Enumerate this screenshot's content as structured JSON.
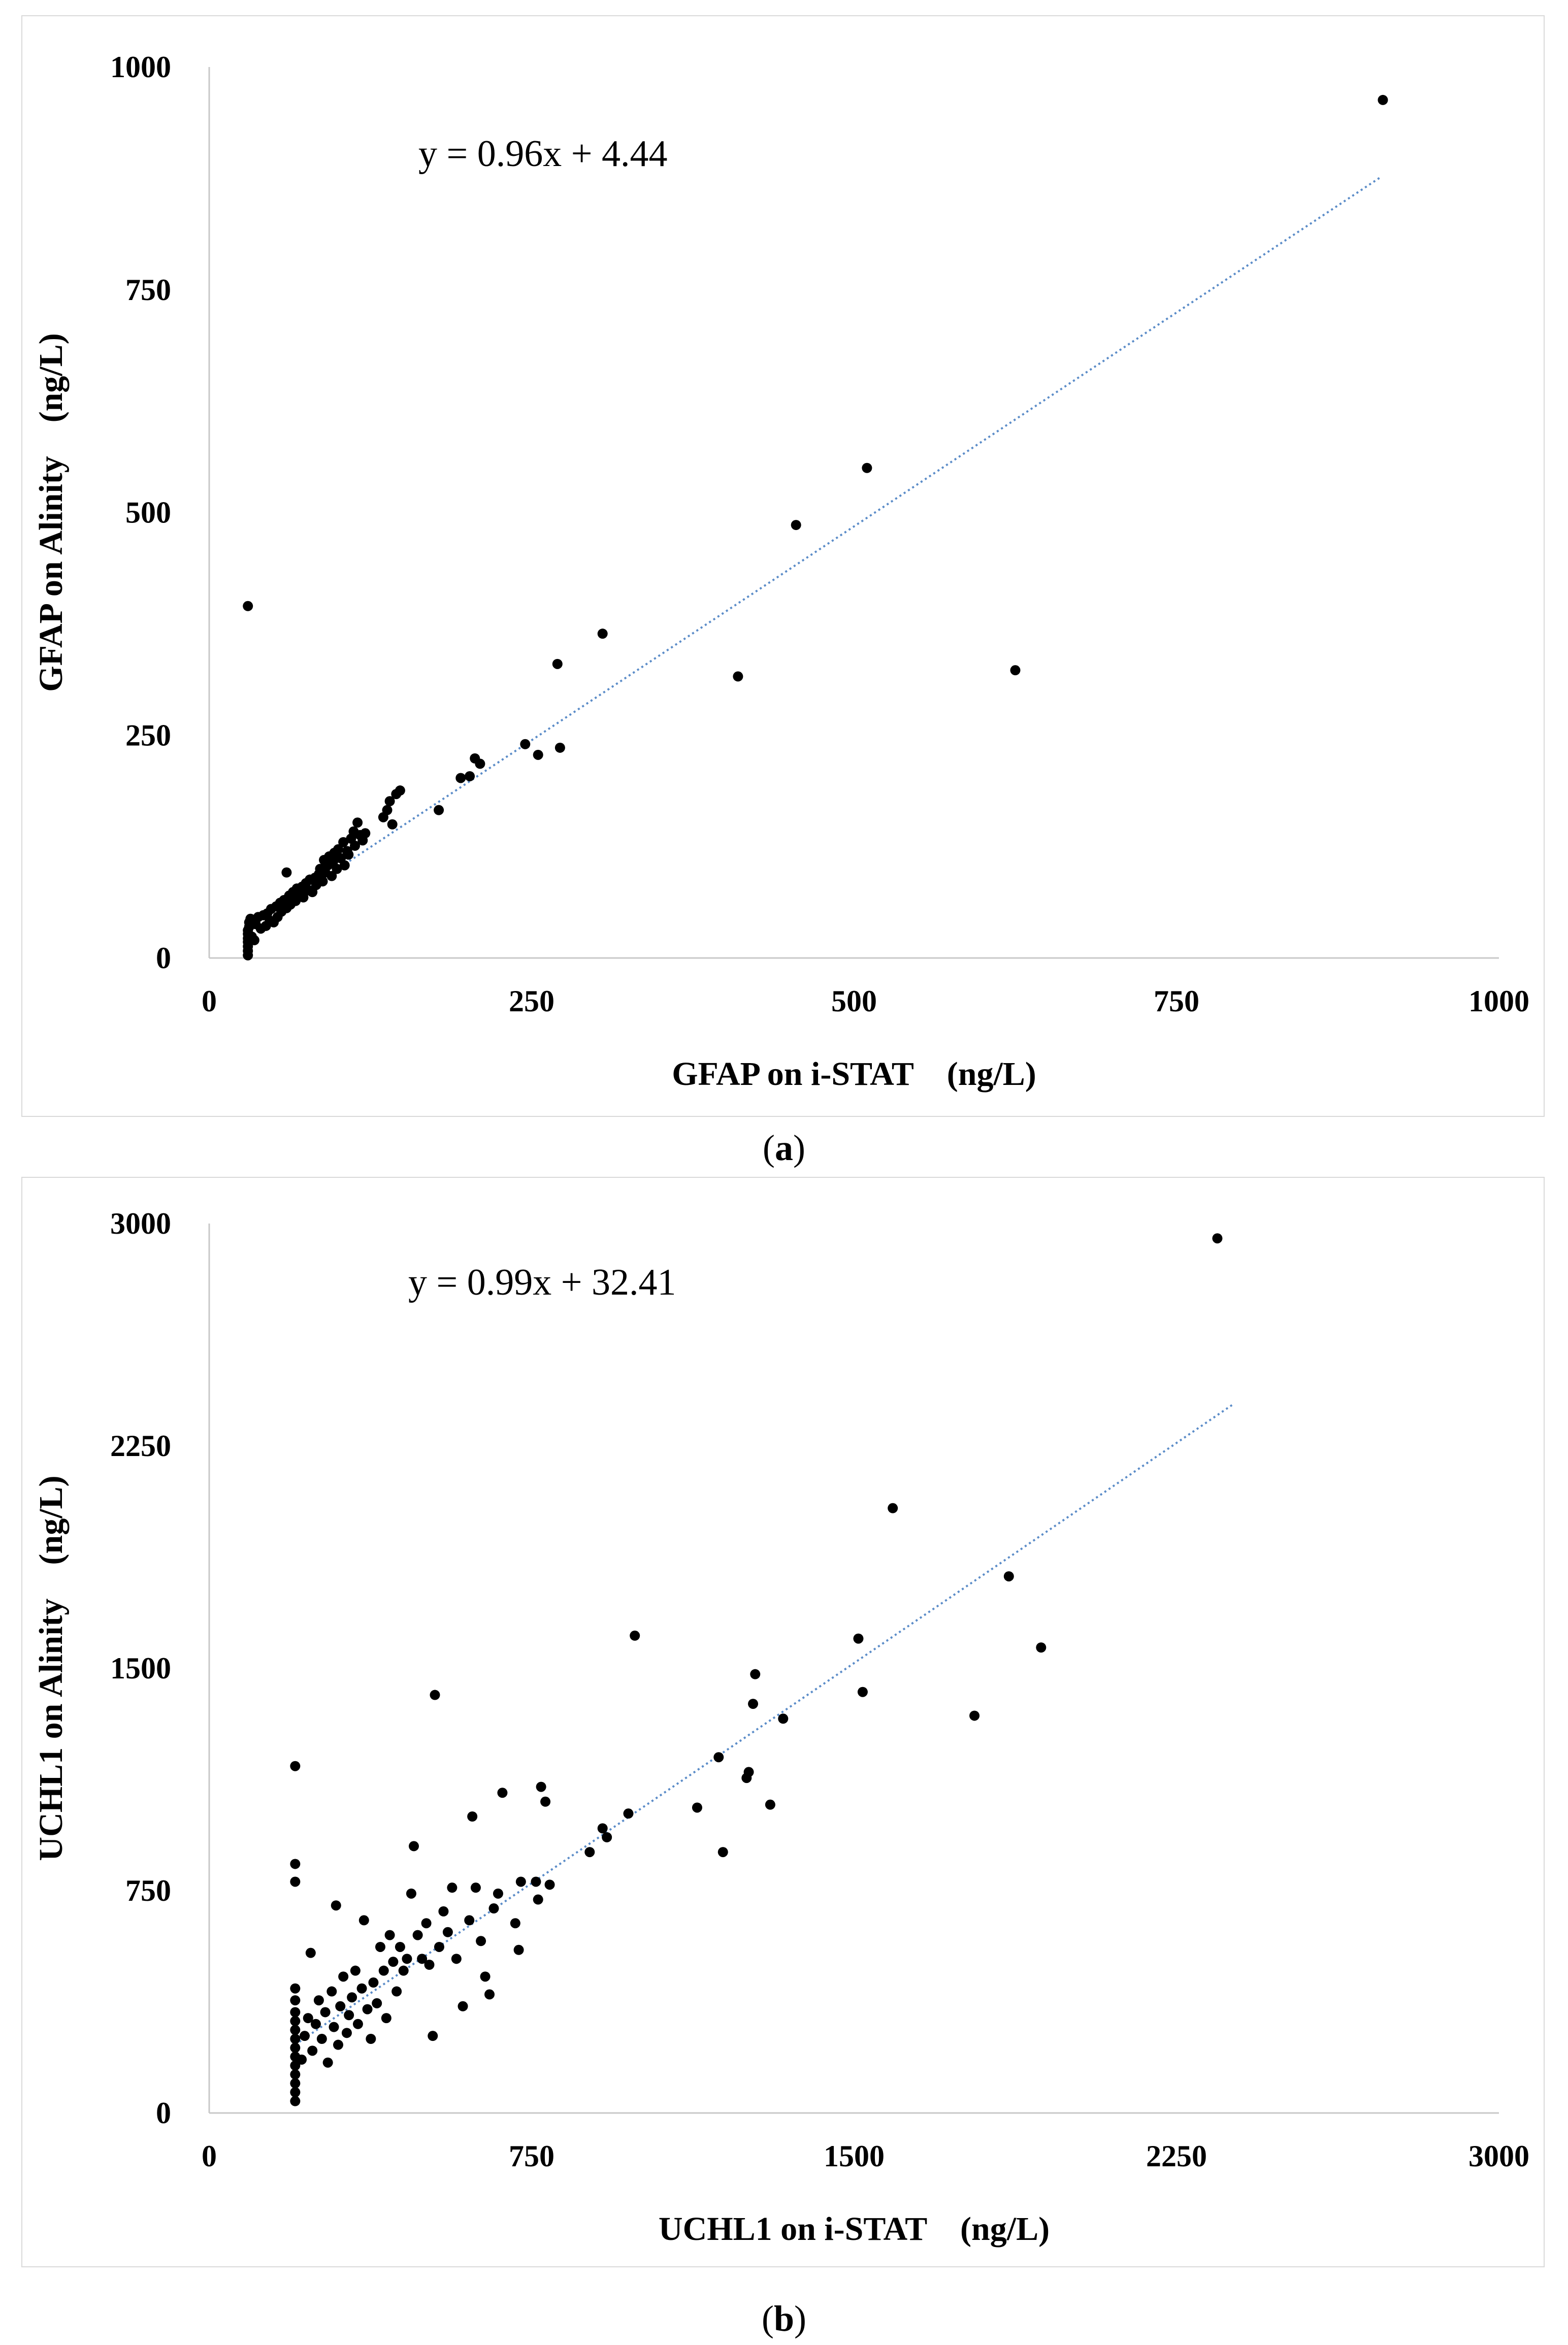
{
  "charts": [
    {
      "panel_label": "a",
      "chart_data": {
        "type": "scatter",
        "title": "",
        "xlabel": "GFAP on i-STAT    (ng/L)",
        "ylabel": "GFAP on Alinity    (ng/L)",
        "xlim": [
          0,
          1000
        ],
        "ylim": [
          0,
          1000
        ],
        "xticks": [
          "0",
          "250",
          "500",
          "750",
          "1000"
        ],
        "yticks": [
          "0",
          "250",
          "500",
          "750",
          "1000"
        ],
        "grid": false,
        "trendline": {
          "slope": 0.96,
          "intercept": 4.44,
          "x_range": [
            30,
            908
          ],
          "label": "y = 0.96x + 4.44"
        },
        "points": [
          [
            30,
            3
          ],
          [
            30,
            8
          ],
          [
            30,
            13
          ],
          [
            30,
            18
          ],
          [
            30,
            22
          ],
          [
            30,
            27
          ],
          [
            30,
            31
          ],
          [
            31,
            35
          ],
          [
            31,
            40
          ],
          [
            32,
            44
          ],
          [
            33,
            24
          ],
          [
            35,
            20
          ],
          [
            36,
            38
          ],
          [
            38,
            46
          ],
          [
            40,
            33
          ],
          [
            42,
            48
          ],
          [
            44,
            36
          ],
          [
            45,
            50
          ],
          [
            47,
            42
          ],
          [
            48,
            55
          ],
          [
            50,
            40
          ],
          [
            52,
            58
          ],
          [
            53,
            46
          ],
          [
            55,
            62
          ],
          [
            56,
            52
          ],
          [
            58,
            65
          ],
          [
            60,
            56
          ],
          [
            60,
            96
          ],
          [
            62,
            70
          ],
          [
            63,
            60
          ],
          [
            65,
            74
          ],
          [
            67,
            64
          ],
          [
            68,
            78
          ],
          [
            70,
            72
          ],
          [
            72,
            80
          ],
          [
            73,
            68
          ],
          [
            75,
            84
          ],
          [
            77,
            76
          ],
          [
            78,
            88
          ],
          [
            80,
            74
          ],
          [
            82,
            90
          ],
          [
            83,
            82
          ],
          [
            85,
            94
          ],
          [
            86,
            100
          ],
          [
            88,
            86
          ],
          [
            89,
            110
          ],
          [
            90,
            96
          ],
          [
            92,
            104
          ],
          [
            93,
            114
          ],
          [
            95,
            92
          ],
          [
            96,
            108
          ],
          [
            97,
            118
          ],
          [
            99,
            100
          ],
          [
            100,
            122
          ],
          [
            102,
            112
          ],
          [
            104,
            130
          ],
          [
            105,
            104
          ],
          [
            107,
            120
          ],
          [
            108,
            116
          ],
          [
            110,
            134
          ],
          [
            112,
            142
          ],
          [
            113,
            126
          ],
          [
            115,
            152
          ],
          [
            117,
            138
          ],
          [
            119,
            132
          ],
          [
            121,
            140
          ],
          [
            135,
            158
          ],
          [
            138,
            166
          ],
          [
            140,
            176
          ],
          [
            142,
            150
          ],
          [
            145,
            184
          ],
          [
            148,
            188
          ],
          [
            178,
            166
          ],
          [
            195,
            202
          ],
          [
            202,
            204
          ],
          [
            206,
            224
          ],
          [
            210,
            218
          ],
          [
            245,
            240
          ],
          [
            255,
            228
          ],
          [
            270,
            330
          ],
          [
            272,
            236
          ],
          [
            305,
            364
          ],
          [
            30,
            395
          ],
          [
            410,
            316
          ],
          [
            455,
            486
          ],
          [
            510,
            550
          ],
          [
            625,
            323
          ],
          [
            910,
            963
          ]
        ]
      }
    },
    {
      "panel_label": "b",
      "chart_data": {
        "type": "scatter",
        "title": "",
        "xlabel": "UCHL1 on i-STAT    (ng/L)",
        "ylabel": "UCHL1 on Alinity    (ng/L)",
        "xlim": [
          0,
          3000
        ],
        "ylim": [
          0,
          3000
        ],
        "xticks": [
          "0",
          "750",
          "1500",
          "2250",
          "3000"
        ],
        "yticks": [
          "0",
          "750",
          "1500",
          "2250",
          "3000"
        ],
        "grid": false,
        "trendline": {
          "slope": 0.99,
          "intercept": 32.41,
          "x_range": [
            200,
            2380
          ],
          "label": "y = 0.99x + 32.41"
        },
        "points": [
          [
            200,
            40
          ],
          [
            200,
            70
          ],
          [
            200,
            100
          ],
          [
            200,
            130
          ],
          [
            200,
            160
          ],
          [
            200,
            190
          ],
          [
            200,
            220
          ],
          [
            200,
            250
          ],
          [
            200,
            280
          ],
          [
            200,
            310
          ],
          [
            200,
            340
          ],
          [
            200,
            380
          ],
          [
            200,
            420
          ],
          [
            200,
            780
          ],
          [
            200,
            840
          ],
          [
            200,
            1170
          ],
          [
            215,
            180
          ],
          [
            222,
            260
          ],
          [
            230,
            320
          ],
          [
            236,
            540
          ],
          [
            240,
            210
          ],
          [
            248,
            300
          ],
          [
            255,
            380
          ],
          [
            262,
            250
          ],
          [
            270,
            340
          ],
          [
            276,
            170
          ],
          [
            285,
            410
          ],
          [
            290,
            290
          ],
          [
            295,
            700
          ],
          [
            300,
            230
          ],
          [
            305,
            360
          ],
          [
            312,
            460
          ],
          [
            320,
            270
          ],
          [
            325,
            330
          ],
          [
            332,
            390
          ],
          [
            340,
            480
          ],
          [
            346,
            300
          ],
          [
            355,
            420
          ],
          [
            360,
            650
          ],
          [
            368,
            350
          ],
          [
            376,
            250
          ],
          [
            382,
            440
          ],
          [
            390,
            370
          ],
          [
            398,
            560
          ],
          [
            406,
            480
          ],
          [
            412,
            320
          ],
          [
            420,
            600
          ],
          [
            428,
            510
          ],
          [
            436,
            410
          ],
          [
            444,
            560
          ],
          [
            452,
            480
          ],
          [
            460,
            520
          ],
          [
            470,
            740
          ],
          [
            476,
            900
          ],
          [
            485,
            600
          ],
          [
            495,
            520
          ],
          [
            505,
            640
          ],
          [
            512,
            500
          ],
          [
            520,
            260
          ],
          [
            525,
            1410
          ],
          [
            535,
            560
          ],
          [
            545,
            680
          ],
          [
            555,
            610
          ],
          [
            565,
            760
          ],
          [
            575,
            520
          ],
          [
            590,
            360
          ],
          [
            605,
            650
          ],
          [
            612,
            1000
          ],
          [
            620,
            760
          ],
          [
            632,
            580
          ],
          [
            642,
            460
          ],
          [
            652,
            400
          ],
          [
            662,
            690
          ],
          [
            672,
            740
          ],
          [
            682,
            1080
          ],
          [
            712,
            640
          ],
          [
            720,
            550
          ],
          [
            725,
            780
          ],
          [
            760,
            780
          ],
          [
            765,
            720
          ],
          [
            772,
            1100
          ],
          [
            782,
            1050
          ],
          [
            792,
            770
          ],
          [
            885,
            880
          ],
          [
            915,
            960
          ],
          [
            925,
            930
          ],
          [
            975,
            1010
          ],
          [
            990,
            1610
          ],
          [
            1135,
            1030
          ],
          [
            1185,
            1200
          ],
          [
            1195,
            880
          ],
          [
            1250,
            1130
          ],
          [
            1255,
            1150
          ],
          [
            1265,
            1380
          ],
          [
            1270,
            1480
          ],
          [
            1305,
            1040
          ],
          [
            1335,
            1330
          ],
          [
            1510,
            1600
          ],
          [
            1520,
            1420
          ],
          [
            1590,
            2040
          ],
          [
            1780,
            1340
          ],
          [
            1860,
            1810
          ],
          [
            1935,
            1570
          ],
          [
            2345,
            2950
          ]
        ]
      }
    }
  ]
}
